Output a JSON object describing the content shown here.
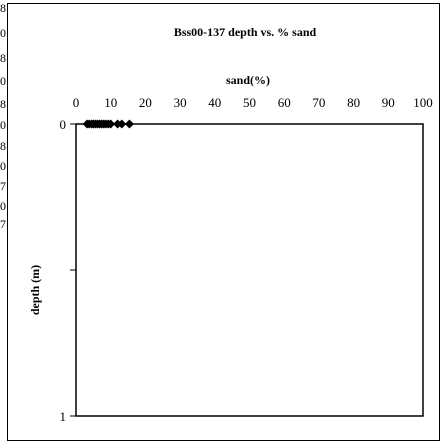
{
  "left_edge_chars": [
    "8",
    "0",
    "8",
    "0",
    "8",
    "0",
    "8",
    "0",
    "7",
    "0",
    "7"
  ],
  "chart_data": {
    "type": "scatter",
    "title": "Bss00-137 depth vs. % sand",
    "xlabel": "sand(%)",
    "ylabel": "depth (m)",
    "xlim": [
      0,
      100
    ],
    "ylim": [
      0,
      1
    ],
    "y_inverted": true,
    "x_axis_position": "top",
    "x_ticks": [
      0,
      10,
      20,
      30,
      40,
      50,
      60,
      70,
      80,
      90,
      100
    ],
    "y_ticks": [
      0,
      1
    ],
    "grid": false,
    "marker": "diamond",
    "marker_color": "#000000",
    "x": [
      3.2,
      3.8,
      4.5,
      5.0,
      5.6,
      6.2,
      6.8,
      7.4,
      8.0,
      8.6,
      9.3,
      10.0,
      12.0,
      13.2,
      15.4
    ],
    "y": [
      0,
      0,
      0,
      0,
      0,
      0,
      0,
      0,
      0,
      0,
      0,
      0,
      0,
      0,
      0
    ]
  }
}
